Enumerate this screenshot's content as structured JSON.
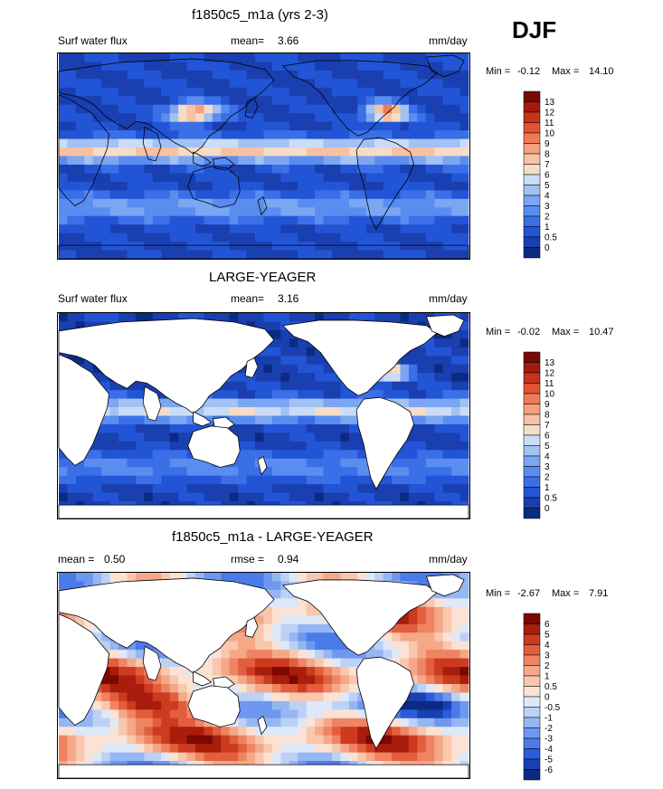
{
  "season": "DJF",
  "colors": {
    "seq": [
      "#0b2a83",
      "#1a3fb0",
      "#2255d6",
      "#3a6fe8",
      "#5a8df0",
      "#7aa6f2",
      "#a2c2f4",
      "#cadcf7",
      "#f4dcc8",
      "#f7c1a3",
      "#f5a07f",
      "#ef7a56",
      "#e2532f",
      "#c8321c",
      "#a11c0e",
      "#780a04"
    ],
    "div": [
      "#0b2a83",
      "#1a3fb0",
      "#2a5ddb",
      "#4a7be9",
      "#6e98f0",
      "#96b6f3",
      "#bcd1f6",
      "#dde8f9",
      "#fbe2d4",
      "#f8c7ad",
      "#f4a887",
      "#ee8462",
      "#e25e3c",
      "#cc3a20",
      "#a81d0c",
      "#7c0803"
    ]
  },
  "panels": [
    {
      "title": "f1850c5_m1a (yrs 2-3)",
      "left_label": "Surf water flux",
      "stat_label": "mean=",
      "stat_value": "3.66",
      "units": "mm/day",
      "min_label": "Min =",
      "min_value": "-0.12",
      "max_label": "Max =",
      "max_value": "14.10",
      "ocean_only": false,
      "chart_data": {
        "type": "heatmap",
        "field": "Surf water flux",
        "units": "mm/day",
        "mean": 3.66,
        "min": -0.12,
        "max": 14.1,
        "levels": [
          "13",
          "12",
          "11",
          "10",
          "9",
          "8",
          "7",
          "6",
          "5",
          "4",
          "3",
          "2",
          "1",
          "0.5",
          "0"
        ]
      }
    },
    {
      "title": "LARGE-YEAGER",
      "left_label": "Surf water flux",
      "stat_label": "mean=",
      "stat_value": "3.16",
      "units": "mm/day",
      "min_label": "Min =",
      "min_value": "-0.02",
      "max_label": "Max =",
      "max_value": "10.47",
      "ocean_only": true,
      "chart_data": {
        "type": "heatmap",
        "field": "Surf water flux",
        "units": "mm/day",
        "mean": 3.16,
        "min": -0.02,
        "max": 10.47,
        "levels": [
          "13",
          "12",
          "11",
          "10",
          "9",
          "8",
          "7",
          "6",
          "5",
          "4",
          "3",
          "2",
          "1",
          "0.5",
          "0"
        ]
      }
    },
    {
      "title": "f1850c5_m1a - LARGE-YEAGER",
      "left_label": "mean =",
      "left_value": "0.50",
      "stat_label": "rmse =",
      "stat_value": "0.94",
      "units": "mm/day",
      "min_label": "Min =",
      "min_value": "-2.67",
      "max_label": "Max =",
      "max_value": "7.91",
      "ocean_only": true,
      "chart_data": {
        "type": "heatmap",
        "field": "difference",
        "units": "mm/day",
        "mean": 0.5,
        "rmse": 0.94,
        "min": -2.67,
        "max": 7.91,
        "levels": [
          "6",
          "5",
          "4",
          "3",
          "2",
          "1",
          "0.5",
          "0",
          "-0.5",
          "-1",
          "-2",
          "-3",
          "-4",
          "-5",
          "-6"
        ]
      }
    }
  ]
}
